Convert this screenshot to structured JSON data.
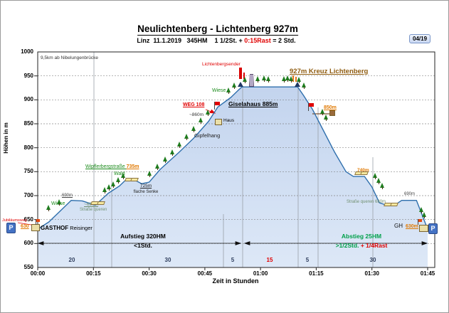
{
  "header": {
    "title": "Neulichtenberg - Lichtenberg 927m",
    "subtitle_a": "Linz  11.1.2019   345HM    1 1/2St. + ",
    "subtitle_rast": "0:15Rast",
    "subtitle_b": " = 2 Std.",
    "badge": "04/19"
  },
  "axes": {
    "y_title": "Höhen in m",
    "x_title": "Zeit in Stunden",
    "y_ticks": [
      "1000",
      "950",
      "900",
      "850",
      "800",
      "750",
      "700",
      "650",
      "600",
      "550"
    ],
    "x_ticks": [
      "00:00",
      "00:15",
      "00:30",
      "00:45",
      "01:00",
      "01:15",
      "01:30",
      "01:45"
    ]
  },
  "segments": {
    "s0": "20",
    "s1": "30",
    "s2": "5",
    "s3": "15",
    "s4": "5",
    "s5": "30"
  },
  "route_notes": {
    "aufstieg_line1": "Aufstieg 320HM",
    "aufstieg_line2": "<1Std.",
    "abstieg_line1": "Abstieg 25HM",
    "abstieg_line2a": ">1/2Std. ",
    "abstieg_line2b": "+ 1/4Rast"
  },
  "annotations": {
    "distance_note": "9,5km ab Nibelungenbrücke",
    "sender": "Lichtenbergsender",
    "kreuz": "927m Kreuz Lichtenberg",
    "wiese_summit": "Wiese",
    "giselahaus": "Giselahaus 885m",
    "weg108": "WEG 108",
    "approx860": "~860m",
    "gipfelhang": "Gipfelhang",
    "haus": "Haus",
    "wiese_lower": "Wiese",
    "wald": "Wald",
    "p690_left": "690m",
    "p680_left": "~680m",
    "strasse_left": "Straße queren",
    "wipfler_name": "Wipflerbergstraße ",
    "wipfler_elev": "735m",
    "senke_elev": "725m",
    "senke_name": "flache Senke",
    "p850": "850m",
    "p740": "740m",
    "strasse_right": "Straße queren 680m",
    "p690_right": "690m",
    "gh": "GH",
    "end_elev": "630m",
    "start_elev": "630",
    "gasthof_bold": "GASTHOF",
    "gasthof_rest": " Reisinger",
    "jubilaeumsweg": "Jubiläumsweg",
    "parking_left": "P",
    "parking_right": "P"
  },
  "chart_data": {
    "type": "area",
    "title": "Neulichtenberg - Lichtenberg 927m",
    "xlabel": "Zeit in Stunden",
    "ylabel": "Höhen in m",
    "x_unit": "minutes",
    "xlim_minutes": [
      0,
      105
    ],
    "ylim": [
      550,
      1000
    ],
    "grid": "horizontal-dashed",
    "profile": [
      [
        0,
        630
      ],
      [
        3,
        645
      ],
      [
        9,
        690
      ],
      [
        12,
        689
      ],
      [
        14,
        684
      ],
      [
        15.5,
        680
      ],
      [
        19,
        705
      ],
      [
        22,
        720
      ],
      [
        24,
        735
      ],
      [
        26,
        733
      ],
      [
        28,
        725
      ],
      [
        30,
        728
      ],
      [
        33,
        755
      ],
      [
        38,
        790
      ],
      [
        42,
        820
      ],
      [
        46,
        855
      ],
      [
        48.5,
        885
      ],
      [
        52,
        905
      ],
      [
        54,
        920
      ],
      [
        55,
        927
      ],
      [
        70,
        927
      ],
      [
        71.5,
        910
      ],
      [
        74,
        880
      ],
      [
        76,
        850
      ],
      [
        80,
        790
      ],
      [
        83,
        750
      ],
      [
        85,
        740
      ],
      [
        88,
        740
      ],
      [
        90,
        718
      ],
      [
        92,
        685
      ],
      [
        94,
        680
      ],
      [
        96.5,
        682
      ],
      [
        98,
        690
      ],
      [
        102,
        690
      ],
      [
        105,
        630
      ]
    ],
    "segment_minutes": [
      20,
      30,
      5,
      15,
      5,
      30
    ],
    "rest_segment_index": 3,
    "waypoints": [
      {
        "name": "Gasthof Reisinger (Start, Parkplatz)",
        "elev_m": 630
      },
      {
        "name": "Straße queren",
        "elev_m": 680
      },
      {
        "name": "Wipflerbergstraße",
        "elev_m": 735
      },
      {
        "name": "flache Senke",
        "elev_m": 725
      },
      {
        "name": "Giselahaus",
        "elev_m": 885
      },
      {
        "name": "Kreuz Lichtenberg (Gipfel)",
        "elev_m": 927
      },
      {
        "name": "Straße queren",
        "elev_m": 680
      },
      {
        "name": "GH (Ende, Parkplatz)",
        "elev_m": 630
      }
    ],
    "colors": {
      "profile_line": "#2f6fad",
      "fill_top": "#c3d4ee",
      "fill_bottom": "#dde8f7",
      "rest_number": "#c00000",
      "abstieg_green": "#00a04a",
      "kreuz_brown": "#8f5c10",
      "elevation_orange": "#e07800"
    }
  }
}
